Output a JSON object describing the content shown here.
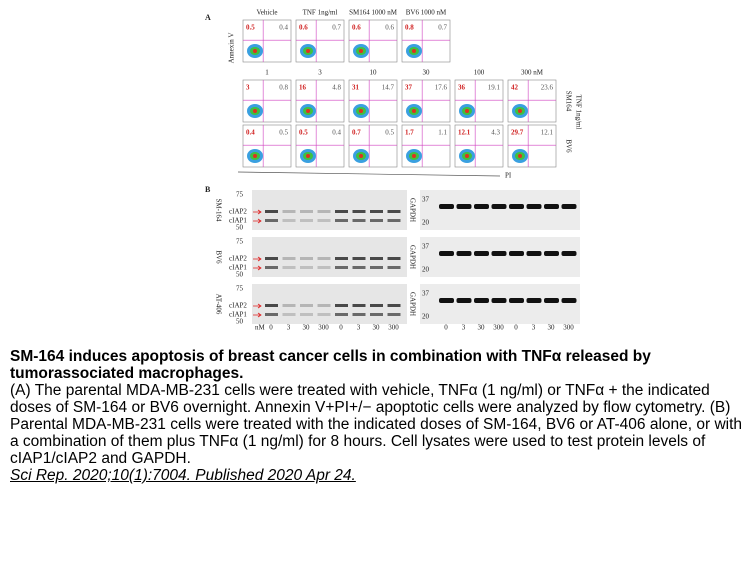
{
  "figure": {
    "panel_a": {
      "label": "A",
      "y_axis": "Annexin V",
      "x_axis": "PI",
      "top_headers": [
        "Vehicle",
        "TNF 1ng/ml",
        "SM164 1000 nM",
        "BV6 1000 nM"
      ],
      "top_plots": [
        {
          "early": "0.5",
          "late": "0.4"
        },
        {
          "early": "0.6",
          "late": "0.7"
        },
        {
          "early": "0.6",
          "late": "0.6"
        },
        {
          "early": "0.8",
          "late": "0.7"
        }
      ],
      "dose_headers": [
        "1",
        "3",
        "10",
        "30",
        "100",
        "300 nM"
      ],
      "treatment_label": "TNF 1ng/ml",
      "rows": [
        {
          "label": "SM164",
          "plots": [
            {
              "early": "3",
              "late": "0.8"
            },
            {
              "early": "16",
              "late": "4.8"
            },
            {
              "early": "31",
              "late": "14.7"
            },
            {
              "early": "37",
              "late": "17.6"
            },
            {
              "early": "36",
              "late": "19.1"
            },
            {
              "early": "42",
              "late": "23.6"
            }
          ]
        },
        {
          "label": "BV6",
          "plots": [
            {
              "early": "0.4",
              "late": "0.5"
            },
            {
              "early": "0.5",
              "late": "0.4"
            },
            {
              "early": "0.7",
              "late": "0.5"
            },
            {
              "early": "1.7",
              "late": "1.1"
            },
            {
              "early": "12.1",
              "late": "4.3"
            },
            {
              "early": "29.7",
              "late": "12.1"
            }
          ]
        }
      ]
    },
    "panel_b": {
      "label": "B",
      "blots": [
        {
          "drug": "SM-164",
          "markers": [
            "75",
            "50"
          ],
          "proteins": [
            "cIAP2",
            "cIAP1"
          ],
          "control": "GAPDH",
          "control_markers": [
            "37",
            "20"
          ]
        },
        {
          "drug": "BV6",
          "markers": [
            "75",
            "50"
          ],
          "proteins": [
            "cIAP2",
            "cIAP1"
          ],
          "control": "GAPDH",
          "control_markers": [
            "37",
            "20"
          ]
        },
        {
          "drug": "AT-406",
          "markers": [
            "75",
            "50"
          ],
          "proteins": [
            "cIAP2",
            "cIAP1"
          ],
          "control": "GAPDH",
          "control_markers": [
            "37",
            "20"
          ]
        }
      ],
      "unit": "nM",
      "lanes": [
        "0",
        "3",
        "30",
        "300",
        "0",
        "3",
        "30",
        "300"
      ],
      "control_lanes": [
        "0",
        "3",
        "30",
        "300",
        "0",
        "3",
        "30",
        "300"
      ]
    }
  },
  "caption": {
    "title": "SM-164 induces apoptosis of breast cancer cells in combination with TNFα released by tumorassociated macrophages.",
    "body": "(A) The parental MDA-MB-231 cells were treated with vehicle, TNFα (1 ng/ml) or TNFα + the indicated doses of SM-164 or BV6 overnight. Annexin V+PI+/− apoptotic cells were analyzed by flow cytometry. (B) Parental MDA-MB-231 cells were treated with the indicated doses of SM-164, BV6 or AT-406 alone, or with a combination of them plus TNFα (1 ng/ml) for 8 hours. Cell lysates were used to test protein levels of cIAP1/cIAP2 and GAPDH.",
    "citation": "Sci Rep. 2020;10(1):7004. Published 2020 Apr 24."
  }
}
